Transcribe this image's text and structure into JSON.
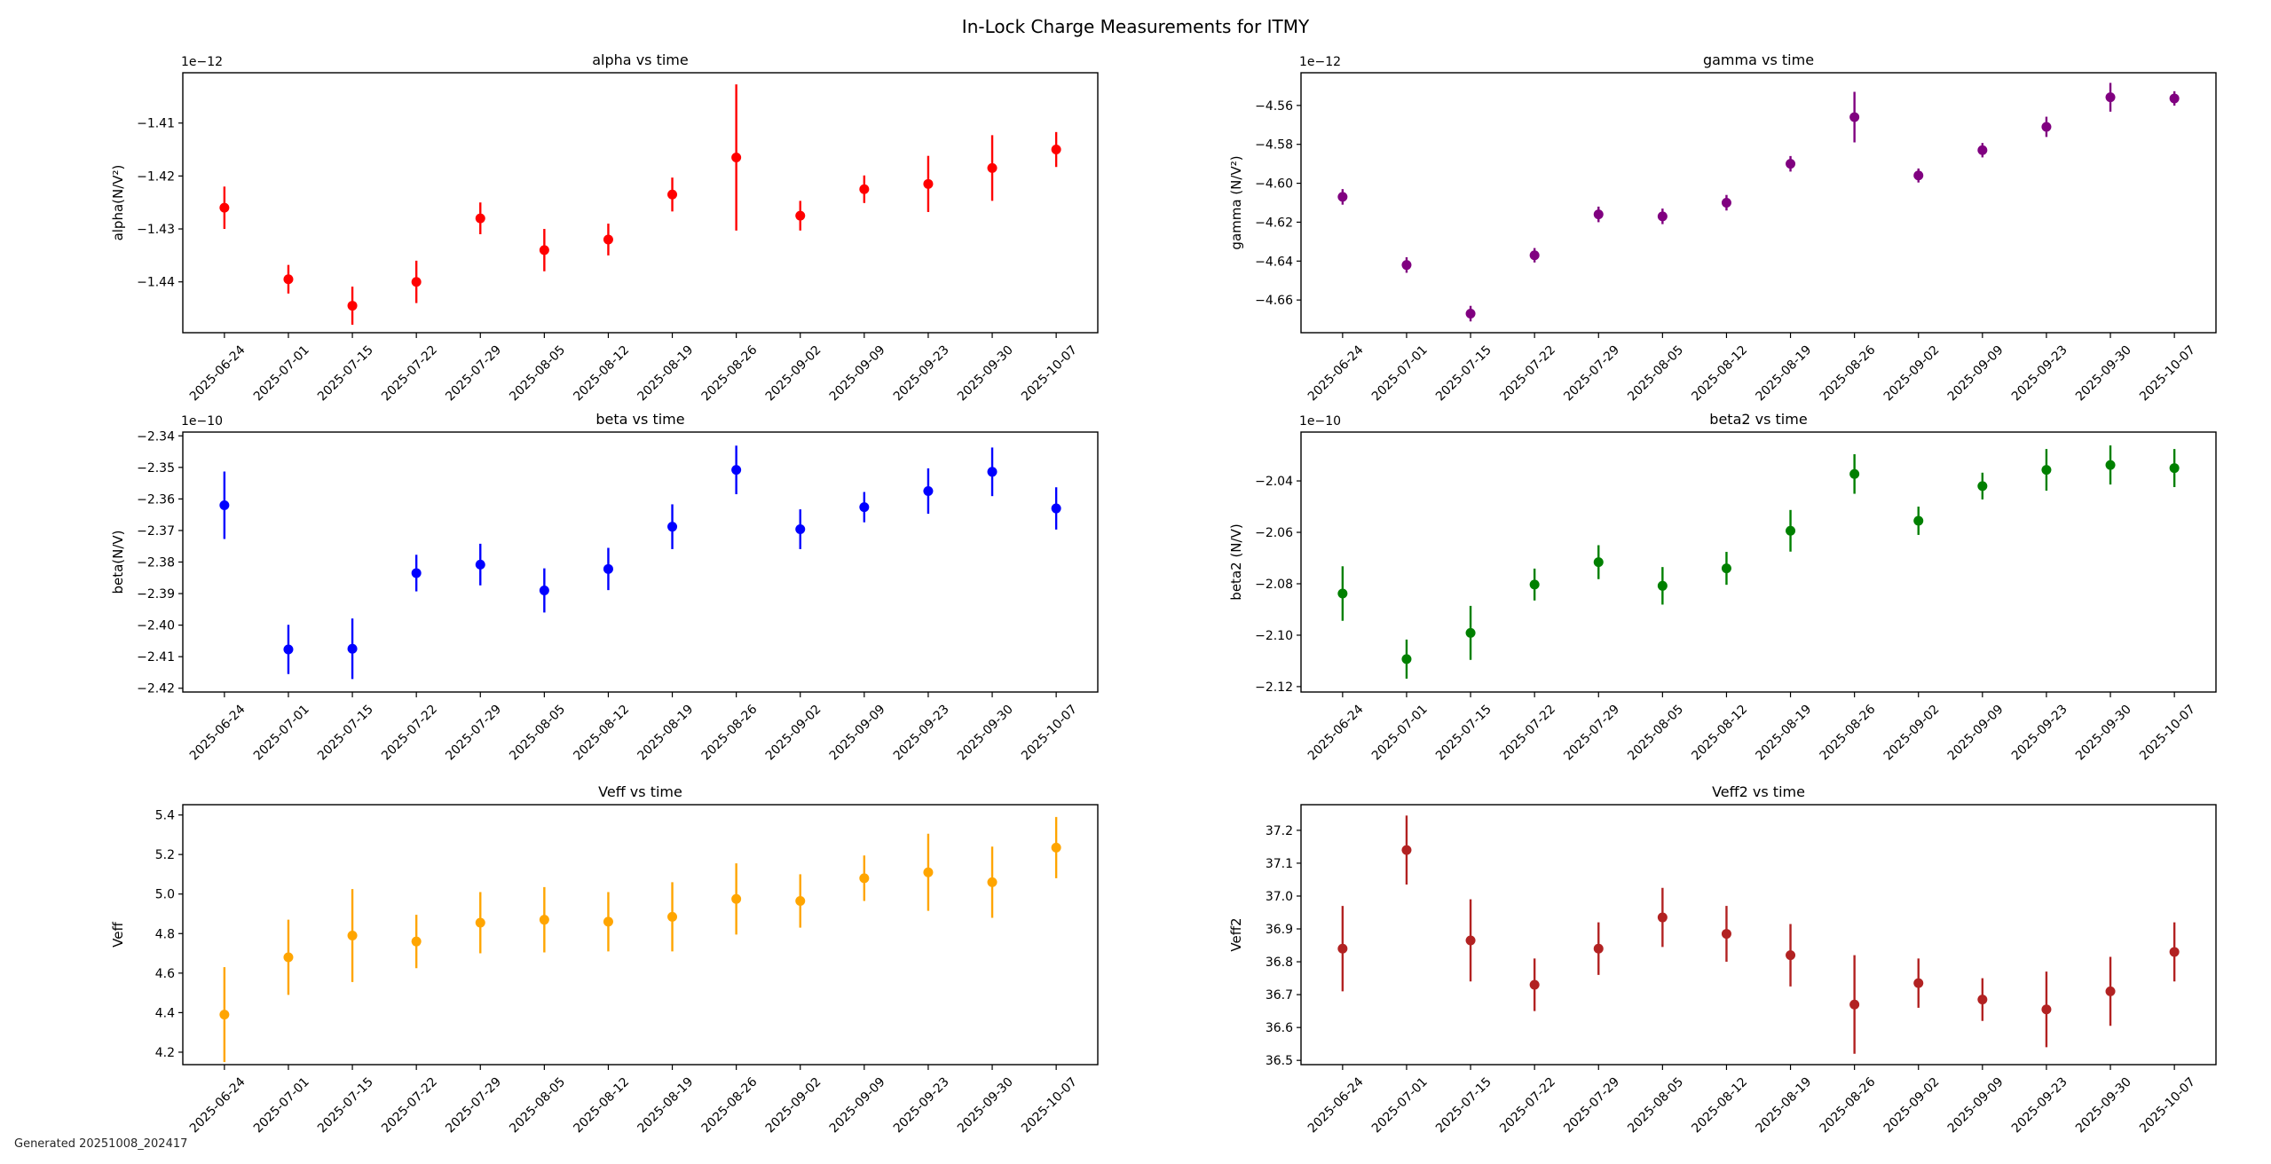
{
  "figure": {
    "title": "In-Lock Charge Measurements for ITMY",
    "footer": "Generated 20251008_202417",
    "background": "#ffffff"
  },
  "x_categories": [
    "2025-06-24",
    "2025-07-01",
    "2025-07-15",
    "2025-07-22",
    "2025-07-29",
    "2025-08-05",
    "2025-08-12",
    "2025-08-19",
    "2025-08-26",
    "2025-09-02",
    "2025-09-09",
    "2025-09-23",
    "2025-09-30",
    "2025-10-07"
  ],
  "chart_data": [
    {
      "type": "scatter",
      "id": "alpha",
      "title": "alpha vs time",
      "ylabel": "alpha(N/V²)",
      "offset_label": "1e−12",
      "color": "#ff0000",
      "ylim": [
        -1.4496,
        -1.4005
      ],
      "yticks": [
        -1.41,
        -1.42,
        -1.43,
        -1.44
      ],
      "tick_decimals": 2,
      "values": [
        -1.426,
        -1.4395,
        -1.4445,
        -1.44,
        -1.428,
        -1.434,
        -1.432,
        -1.4235,
        -1.4165,
        -1.4275,
        -1.4225,
        -1.4215,
        -1.4185,
        -1.415
      ],
      "errors": [
        0.004,
        0.0027,
        0.0036,
        0.004,
        0.003,
        0.004,
        0.003,
        0.0032,
        0.0138,
        0.0028,
        0.0026,
        0.0053,
        0.0062,
        0.0033
      ],
      "grid": false,
      "legend": null
    },
    {
      "type": "scatter",
      "id": "gamma",
      "title": "gamma vs time",
      "ylabel": "gamma (N/V²)",
      "offset_label": "1e−12",
      "color": "#800080",
      "ylim": [
        -4.6768,
        -4.5432
      ],
      "yticks": [
        -4.56,
        -4.58,
        -4.6,
        -4.62,
        -4.64,
        -4.66
      ],
      "tick_decimals": 2,
      "values": [
        -4.607,
        -4.642,
        -4.667,
        -4.637,
        -4.616,
        -4.617,
        -4.61,
        -4.59,
        -4.566,
        -4.596,
        -4.583,
        -4.571,
        -4.5558,
        -4.5564
      ],
      "errors": [
        0.004,
        0.004,
        0.004,
        0.0037,
        0.004,
        0.004,
        0.004,
        0.004,
        0.013,
        0.0036,
        0.0037,
        0.0052,
        0.0074,
        0.0037
      ],
      "grid": false,
      "legend": null
    },
    {
      "type": "scatter",
      "id": "beta",
      "title": "beta vs time",
      "ylabel": "beta(N/V)",
      "offset_label": "1e−10",
      "color": "#0000ff",
      "ylim": [
        -2.4212,
        -2.3388
      ],
      "yticks": [
        -2.34,
        -2.35,
        -2.36,
        -2.37,
        -2.38,
        -2.39,
        -2.4,
        -2.41,
        -2.42
      ],
      "tick_decimals": 2,
      "values": [
        -2.362,
        -2.4077,
        -2.4075,
        -2.3835,
        -2.3808,
        -2.389,
        -2.3822,
        -2.3688,
        -2.3508,
        -2.3696,
        -2.3626,
        -2.3575,
        -2.3514,
        -2.363
      ],
      "errors": [
        0.0107,
        0.0078,
        0.0096,
        0.0058,
        0.0066,
        0.007,
        0.0067,
        0.0071,
        0.0077,
        0.0063,
        0.0048,
        0.0072,
        0.0077,
        0.0067
      ],
      "grid": false,
      "legend": null
    },
    {
      "type": "scatter",
      "id": "beta2",
      "title": "beta2 vs time",
      "ylabel": "beta2 (N/V)",
      "offset_label": "1e−10",
      "color": "#008000",
      "ylim": [
        -2.1221,
        -2.021
      ],
      "yticks": [
        -2.04,
        -2.06,
        -2.08,
        -2.1,
        -2.12
      ],
      "tick_decimals": 2,
      "values": [
        -2.0838,
        -2.1093,
        -2.0991,
        -2.0803,
        -2.0716,
        -2.0808,
        -2.074,
        -2.0594,
        -2.0373,
        -2.0555,
        -2.042,
        -2.0357,
        -2.0338,
        -2.035
      ],
      "errors": [
        0.0106,
        0.0076,
        0.0105,
        0.0062,
        0.0066,
        0.0073,
        0.0064,
        0.0081,
        0.0077,
        0.0055,
        0.0052,
        0.0081,
        0.0076,
        0.0074
      ],
      "grid": false,
      "legend": null
    },
    {
      "type": "scatter",
      "id": "Veff",
      "title": "Veff vs time",
      "ylabel": "Veff",
      "offset_label": null,
      "color": "#ffa500",
      "ylim": [
        4.137,
        5.452
      ],
      "yticks": [
        4.2,
        4.4,
        4.6,
        4.8,
        5.0,
        5.2,
        5.4
      ],
      "tick_decimals": 1,
      "values": [
        4.39,
        4.68,
        4.79,
        4.76,
        4.855,
        4.87,
        4.86,
        4.885,
        4.975,
        4.965,
        5.08,
        5.11,
        5.06,
        5.235
      ],
      "errors": [
        0.24,
        0.19,
        0.235,
        0.135,
        0.155,
        0.165,
        0.15,
        0.175,
        0.18,
        0.135,
        0.115,
        0.195,
        0.18,
        0.155
      ],
      "grid": false,
      "legend": null
    },
    {
      "type": "scatter",
      "id": "Veff2",
      "title": "Veff2 vs time",
      "ylabel": "Veff2",
      "offset_label": null,
      "color": "#b22222",
      "ylim": [
        36.487,
        37.278
      ],
      "yticks": [
        36.5,
        36.6,
        36.7,
        36.8,
        36.9,
        37.0,
        37.1,
        37.2
      ],
      "tick_decimals": 1,
      "values": [
        36.84,
        37.14,
        36.865,
        36.73,
        36.84,
        36.935,
        36.885,
        36.82,
        36.67,
        36.735,
        36.685,
        36.655,
        36.71,
        36.83
      ],
      "errors": [
        0.13,
        0.105,
        0.125,
        0.08,
        0.08,
        0.09,
        0.085,
        0.095,
        0.15,
        0.075,
        0.065,
        0.115,
        0.105,
        0.09
      ],
      "grid": false,
      "legend": null
    }
  ]
}
